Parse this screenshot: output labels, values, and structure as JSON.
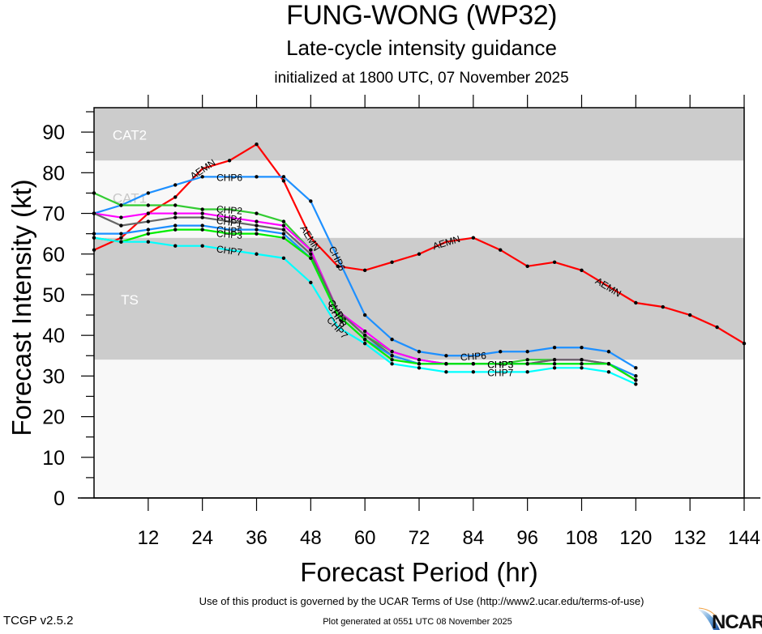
{
  "header": {
    "title": "FUNG-WONG (WP32)",
    "subtitle": "Late-cycle intensity guidance",
    "init": "initialized at 1800 UTC, 07 November 2025"
  },
  "footer": {
    "terms": "Use of this product is governed by the UCAR Terms of Use (http://www2.ucar.edu/terms-of-use)",
    "generated": "Plot generated at 0551 UTC   08 November 2025",
    "version": "TCGP v2.5.2",
    "logo": "NCAR"
  },
  "chart_data": {
    "type": "line",
    "title": "FUNG-WONG (WP32)",
    "xlabel": "Forecast Period (hr)",
    "ylabel": "Forecast Intensity (kt)",
    "xlim": [
      0,
      144
    ],
    "ylim": [
      0,
      96
    ],
    "xticks": [
      12,
      24,
      36,
      48,
      60,
      72,
      84,
      96,
      108,
      120,
      132,
      144
    ],
    "yticks": [
      0,
      10,
      20,
      30,
      40,
      50,
      60,
      70,
      80,
      90
    ],
    "grid": false,
    "bands": [
      {
        "label": "TS",
        "from": 34,
        "to": 64,
        "color": "#cccccc"
      },
      {
        "label": "CAT1",
        "from": 64,
        "to": 83,
        "color": "#f8f8f8"
      },
      {
        "label": "CAT2",
        "from": 83,
        "to": 96,
        "color": "#cccccc"
      },
      {
        "label": "",
        "from": 0,
        "to": 34,
        "color": "#f8f8f8"
      }
    ],
    "series": [
      {
        "name": "AEMN",
        "color": "#ff0000",
        "x": [
          0,
          6,
          12,
          18,
          24,
          30,
          36,
          42,
          48,
          54,
          60,
          66,
          72,
          78,
          84,
          90,
          96,
          102,
          108,
          114,
          120,
          126,
          132,
          138,
          144
        ],
        "values": [
          61,
          64,
          70,
          74,
          81,
          83,
          87,
          78,
          64,
          57,
          56,
          58,
          60,
          63,
          64,
          61,
          57,
          58,
          56,
          52,
          48,
          47,
          45,
          42,
          38
        ],
        "label_at": [
          24,
          48,
          78,
          114
        ]
      },
      {
        "name": "CHP6",
        "color": "#1e90ff",
        "x": [
          0,
          6,
          12,
          18,
          24,
          30,
          36,
          42,
          48,
          54,
          60,
          66,
          72,
          78,
          84,
          90,
          96,
          102,
          108,
          114,
          120
        ],
        "values": [
          70,
          72,
          75,
          77,
          79,
          79,
          79,
          79,
          73,
          59,
          45,
          39,
          36,
          35,
          35,
          36,
          36,
          37,
          37,
          36,
          32
        ],
        "label_at": [
          30,
          54,
          84
        ]
      },
      {
        "name": "CHP2",
        "color": "#33cc33",
        "x": [
          0,
          6,
          12,
          18,
          24,
          30,
          36,
          42,
          48,
          54,
          60,
          66,
          72,
          78,
          84,
          90,
          96,
          102,
          108,
          114,
          120
        ],
        "values": [
          75,
          72,
          72,
          72,
          71,
          71,
          70,
          68,
          61,
          46,
          40,
          36,
          34,
          33,
          33,
          33,
          34,
          34,
          34,
          33,
          30
        ],
        "label_at": [
          30,
          54
        ]
      },
      {
        "name": "CHP4",
        "color": "#ff00ff",
        "x": [
          0,
          6,
          12,
          18,
          24,
          30,
          36,
          42,
          48,
          54,
          60,
          66,
          72,
          78,
          84,
          90,
          96,
          102,
          108,
          114,
          120
        ],
        "values": [
          70,
          69,
          70,
          70,
          70,
          69,
          68,
          67,
          61,
          46,
          41,
          36,
          34,
          33,
          33,
          33,
          33,
          34,
          34,
          33,
          29
        ],
        "label_at": [
          30,
          54
        ]
      },
      {
        "name": "CHP1",
        "color": "#666666",
        "x": [
          0,
          6,
          12,
          18,
          24,
          30,
          36,
          42,
          48,
          54,
          60,
          66,
          72,
          78,
          84,
          90,
          96,
          102,
          108,
          114,
          120
        ],
        "values": [
          70,
          67,
          68,
          69,
          69,
          68,
          67,
          66,
          60,
          46,
          40,
          35,
          33,
          33,
          33,
          33,
          33,
          34,
          34,
          33,
          29
        ],
        "label_at": [
          30,
          54
        ]
      },
      {
        "name": "CHP5",
        "color": "#1e90ff",
        "x": [
          0,
          6,
          12,
          18,
          24,
          30,
          36,
          42,
          48,
          54,
          60,
          66,
          72,
          78,
          84,
          90,
          96,
          102,
          108,
          114,
          120
        ],
        "values": [
          65,
          65,
          66,
          67,
          67,
          66,
          66,
          65,
          59,
          45,
          39,
          35,
          33,
          33,
          33,
          33,
          33,
          33,
          33,
          33,
          30
        ],
        "label_at": [
          30,
          54,
          90
        ]
      },
      {
        "name": "CHP3",
        "color": "#00ee00",
        "x": [
          0,
          6,
          12,
          18,
          24,
          30,
          36,
          42,
          48,
          54,
          60,
          66,
          72,
          78,
          84,
          90,
          96,
          102,
          108,
          114,
          120
        ],
        "values": [
          64,
          63,
          65,
          66,
          66,
          65,
          65,
          64,
          59,
          45,
          39,
          34,
          33,
          33,
          33,
          33,
          33,
          33,
          33,
          33,
          29
        ],
        "label_at": [
          30,
          54,
          90
        ]
      },
      {
        "name": "CHP7",
        "color": "#00ffff",
        "x": [
          0,
          6,
          12,
          18,
          24,
          30,
          36,
          42,
          48,
          54,
          60,
          66,
          72,
          78,
          84,
          90,
          96,
          102,
          108,
          114,
          120
        ],
        "values": [
          64,
          63,
          63,
          62,
          62,
          61,
          60,
          59,
          53,
          42,
          38,
          33,
          32,
          31,
          31,
          31,
          31,
          32,
          32,
          31,
          28
        ],
        "label_at": [
          30,
          54,
          90
        ]
      }
    ]
  }
}
